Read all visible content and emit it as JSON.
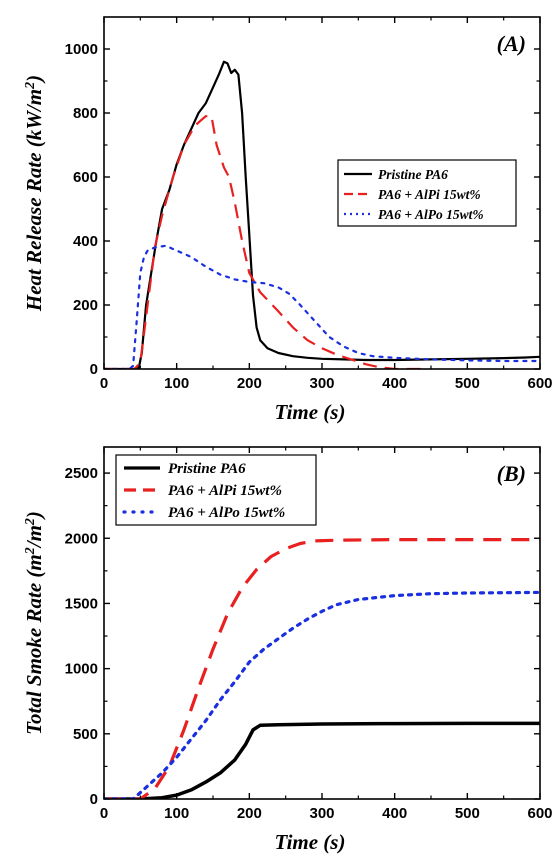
{
  "chart_data": [
    {
      "type": "line",
      "panel_label": "(A)",
      "xlabel": "Time (s)",
      "ylabel": "Heat Release Rate (kW/m²)",
      "ylabel_main": "Heat Release Rate (kW/m",
      "ylabel_sup": "2",
      "ylabel_end": ")",
      "xlim": [
        0,
        600
      ],
      "ylim": [
        0,
        1100
      ],
      "x_ticks": [
        0,
        100,
        200,
        300,
        400,
        500,
        600
      ],
      "y_ticks": [
        0,
        200,
        400,
        600,
        800,
        1000
      ],
      "legend_position": "middle-right",
      "series": [
        {
          "name": "Pristine PA6",
          "color": "#000000",
          "dash": "solid",
          "points": [
            [
              0,
              0
            ],
            [
              40,
              0
            ],
            [
              48,
              5
            ],
            [
              52,
              50
            ],
            [
              58,
              200
            ],
            [
              65,
              300
            ],
            [
              72,
              400
            ],
            [
              80,
              500
            ],
            [
              90,
              560
            ],
            [
              100,
              640
            ],
            [
              110,
              700
            ],
            [
              120,
              750
            ],
            [
              130,
              800
            ],
            [
              140,
              830
            ],
            [
              150,
              880
            ],
            [
              158,
              920
            ],
            [
              165,
              960
            ],
            [
              170,
              955
            ],
            [
              175,
              925
            ],
            [
              180,
              935
            ],
            [
              185,
              920
            ],
            [
              190,
              800
            ],
            [
              195,
              600
            ],
            [
              200,
              420
            ],
            [
              205,
              230
            ],
            [
              210,
              130
            ],
            [
              215,
              90
            ],
            [
              225,
              65
            ],
            [
              240,
              50
            ],
            [
              260,
              40
            ],
            [
              280,
              35
            ],
            [
              300,
              32
            ],
            [
              330,
              30
            ],
            [
              360,
              28
            ],
            [
              400,
              28
            ],
            [
              450,
              30
            ],
            [
              500,
              32
            ],
            [
              550,
              34
            ],
            [
              580,
              36
            ],
            [
              600,
              38
            ]
          ]
        },
        {
          "name": "PA6 + AlPi 15wt%",
          "color": "#e82020",
          "dash": "dashed",
          "points": [
            [
              0,
              0
            ],
            [
              42,
              0
            ],
            [
              50,
              20
            ],
            [
              60,
              200
            ],
            [
              70,
              380
            ],
            [
              80,
              480
            ],
            [
              95,
              600
            ],
            [
              110,
              700
            ],
            [
              125,
              760
            ],
            [
              140,
              790
            ],
            [
              148,
              790
            ],
            [
              155,
              700
            ],
            [
              165,
              630
            ],
            [
              172,
              600
            ],
            [
              180,
              520
            ],
            [
              190,
              400
            ],
            [
              200,
              300
            ],
            [
              215,
              240
            ],
            [
              240,
              180
            ],
            [
              260,
              130
            ],
            [
              280,
              90
            ],
            [
              300,
              65
            ],
            [
              320,
              45
            ],
            [
              340,
              30
            ],
            [
              360,
              15
            ],
            [
              380,
              5
            ],
            [
              400,
              0
            ],
            [
              440,
              0
            ]
          ]
        },
        {
          "name": "PA6 + AlPo 15wt%",
          "color": "#1a2fe0",
          "dash": "dotted",
          "points": [
            [
              0,
              0
            ],
            [
              35,
              0
            ],
            [
              40,
              10
            ],
            [
              45,
              150
            ],
            [
              50,
              300
            ],
            [
              55,
              350
            ],
            [
              60,
              370
            ],
            [
              70,
              380
            ],
            [
              85,
              385
            ],
            [
              100,
              370
            ],
            [
              120,
              350
            ],
            [
              140,
              320
            ],
            [
              160,
              295
            ],
            [
              180,
              280
            ],
            [
              200,
              272
            ],
            [
              220,
              268
            ],
            [
              240,
              255
            ],
            [
              255,
              235
            ],
            [
              270,
              200
            ],
            [
              290,
              150
            ],
            [
              310,
              100
            ],
            [
              330,
              70
            ],
            [
              350,
              50
            ],
            [
              370,
              40
            ],
            [
              400,
              35
            ],
            [
              450,
              30
            ],
            [
              500,
              27
            ],
            [
              550,
              25
            ],
            [
              600,
              25
            ]
          ]
        }
      ]
    },
    {
      "type": "line",
      "panel_label": "(B)",
      "xlabel": "Time (s)",
      "ylabel": "Total Smoke Rate (m²/m²)",
      "ylabel_main": "Total Smoke Rate (m",
      "ylabel_sup1": "2",
      "ylabel_mid": "/m",
      "ylabel_sup2": "2",
      "ylabel_end": ")",
      "xlim": [
        0,
        600
      ],
      "ylim": [
        0,
        2700
      ],
      "x_ticks": [
        0,
        100,
        200,
        300,
        400,
        500,
        600
      ],
      "y_ticks": [
        0,
        500,
        1000,
        1500,
        2000,
        2500
      ],
      "legend_position": "top-left",
      "series": [
        {
          "name": "Pristine PA6",
          "color": "#000000",
          "dash": "solid",
          "points": [
            [
              0,
              0
            ],
            [
              50,
              0
            ],
            [
              80,
              10
            ],
            [
              100,
              30
            ],
            [
              120,
              70
            ],
            [
              140,
              130
            ],
            [
              160,
              200
            ],
            [
              180,
              300
            ],
            [
              195,
              420
            ],
            [
              205,
              530
            ],
            [
              215,
              565
            ],
            [
              240,
              570
            ],
            [
              300,
              575
            ],
            [
              400,
              578
            ],
            [
              500,
              580
            ],
            [
              600,
              580
            ]
          ]
        },
        {
          "name": "PA6 + AlPi 15wt%",
          "color": "#e82020",
          "dash": "dashed",
          "points": [
            [
              0,
              0
            ],
            [
              50,
              0
            ],
            [
              70,
              80
            ],
            [
              90,
              250
            ],
            [
              110,
              530
            ],
            [
              130,
              850
            ],
            [
              150,
              1150
            ],
            [
              170,
              1420
            ],
            [
              190,
              1620
            ],
            [
              210,
              1760
            ],
            [
              230,
              1860
            ],
            [
              250,
              1920
            ],
            [
              270,
              1960
            ],
            [
              290,
              1980
            ],
            [
              320,
              1985
            ],
            [
              400,
              1990
            ],
            [
              500,
              1990
            ],
            [
              600,
              1990
            ]
          ]
        },
        {
          "name": "PA6 + AlPo 15wt%",
          "color": "#1a2fe0",
          "dash": "dotted",
          "points": [
            [
              0,
              0
            ],
            [
              40,
              0
            ],
            [
              60,
              100
            ],
            [
              80,
              200
            ],
            [
              100,
              320
            ],
            [
              120,
              460
            ],
            [
              140,
              600
            ],
            [
              160,
              760
            ],
            [
              180,
              900
            ],
            [
              200,
              1050
            ],
            [
              220,
              1150
            ],
            [
              240,
              1230
            ],
            [
              260,
              1310
            ],
            [
              280,
              1380
            ],
            [
              300,
              1440
            ],
            [
              320,
              1490
            ],
            [
              350,
              1530
            ],
            [
              400,
              1560
            ],
            [
              450,
              1575
            ],
            [
              500,
              1580
            ],
            [
              600,
              1585
            ]
          ]
        }
      ]
    }
  ]
}
